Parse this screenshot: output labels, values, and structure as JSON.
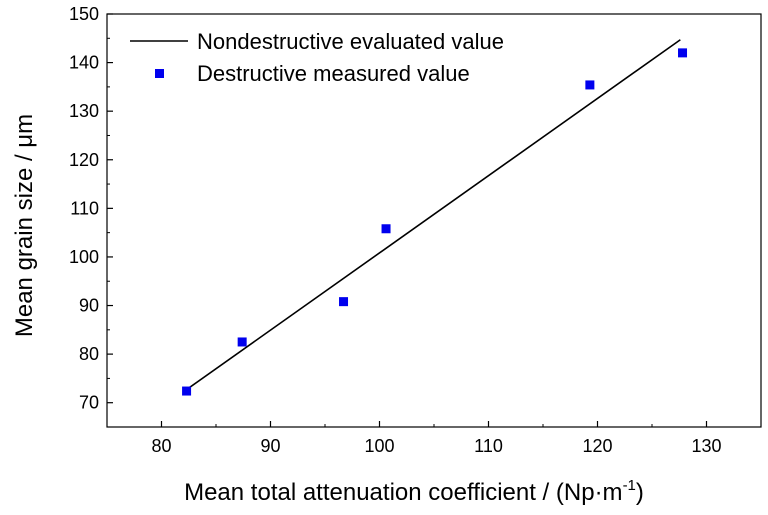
{
  "chart_data": {
    "type": "scatter",
    "xlabel": "Mean total attenuation coefficient / (Np·m",
    "xlabel_sup": "-1",
    "xlabel_end": ")",
    "ylabel": "Mean grain size / μm",
    "xlim": [
      75,
      135
    ],
    "ylim": [
      65,
      150
    ],
    "x_ticks": [
      80,
      90,
      100,
      110,
      120,
      130
    ],
    "y_ticks": [
      70,
      80,
      90,
      100,
      110,
      120,
      130,
      140,
      150
    ],
    "legend_position": "top-left",
    "series": [
      {
        "name": "Nondestructive evaluated value",
        "kind": "line",
        "color": "#000000",
        "x": [
          82.3,
          127.6
        ],
        "y": [
          72.7,
          144.7
        ]
      },
      {
        "name": "Destructive measured value",
        "kind": "scatter",
        "marker": "square",
        "color": "#0000ee",
        "x": [
          82.3,
          87.4,
          96.7,
          100.6,
          119.3,
          127.8
        ],
        "y": [
          72.4,
          82.5,
          90.8,
          105.8,
          135.4,
          142.0
        ]
      }
    ]
  }
}
